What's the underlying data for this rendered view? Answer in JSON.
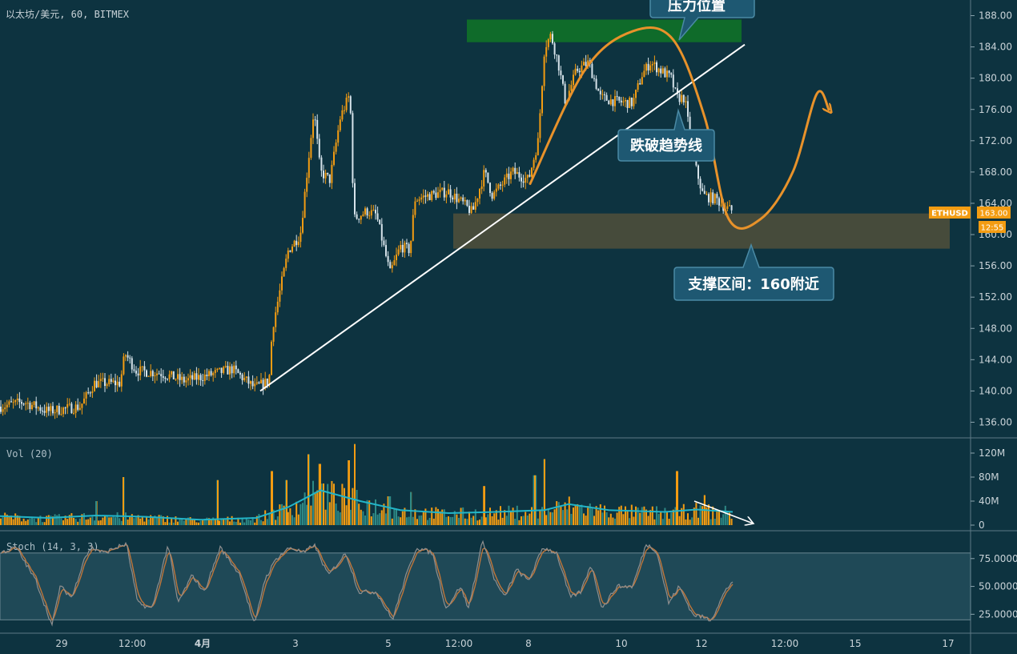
{
  "header": {
    "symbol_title": "以太坊/美元, 60, BITMEX"
  },
  "price_badges": {
    "symbol": "ETHUSD",
    "price": "163.00",
    "countdown": "12:55"
  },
  "colors": {
    "background": "#0d3340",
    "up": "#f39c12",
    "down": "#d6e3ea",
    "ma": "#22b5c8",
    "resistance_zone": "#0f6b2a",
    "support_zone": "#4d4e3b",
    "trend_line": "#ffffff",
    "projection": "#e8922a",
    "callout": "#1e5872"
  },
  "icons": {
    "projection_arrow": "arrow-up-right-icon",
    "volume_arrow": "arrow-down-right-icon"
  },
  "annotations": {
    "resistance": "压力位置",
    "trendline_break": "跌破趋势线",
    "support": "支撑区间：160附近"
  },
  "chart_data": [
    {
      "type": "candlestick",
      "title": "以太坊/美元, 60, BITMEX",
      "symbol": "ETHUSD",
      "last_price": 163.0,
      "ylim": [
        134,
        190
      ],
      "y_ticks": [
        "188.00",
        "184.00",
        "180.00",
        "176.00",
        "172.00",
        "168.00",
        "164.00",
        "160.00",
        "156.00",
        "152.00",
        "148.00",
        "144.00",
        "140.00",
        "136.00"
      ],
      "x_ticks": [
        "29",
        "12:00",
        "4月",
        "3",
        "5",
        "12:00",
        "8",
        "10",
        "12",
        "12:00",
        "15",
        "17"
      ],
      "close_anchors": [
        {
          "x": 0,
          "y": 138.0
        },
        {
          "x": 30,
          "y": 138.6
        },
        {
          "x": 60,
          "y": 137.4
        },
        {
          "x": 100,
          "y": 138.0
        },
        {
          "x": 118,
          "y": 141.0
        },
        {
          "x": 150,
          "y": 141.0
        },
        {
          "x": 156,
          "y": 144.8
        },
        {
          "x": 170,
          "y": 142.6
        },
        {
          "x": 200,
          "y": 142.3
        },
        {
          "x": 230,
          "y": 141.3
        },
        {
          "x": 260,
          "y": 142.0
        },
        {
          "x": 290,
          "y": 142.8
        },
        {
          "x": 318,
          "y": 140.4
        },
        {
          "x": 336,
          "y": 141.3
        },
        {
          "x": 340,
          "y": 148.0
        },
        {
          "x": 360,
          "y": 158.0
        },
        {
          "x": 375,
          "y": 160.0
        },
        {
          "x": 392,
          "y": 176.0
        },
        {
          "x": 400,
          "y": 168.0
        },
        {
          "x": 412,
          "y": 167.0
        },
        {
          "x": 425,
          "y": 175.0
        },
        {
          "x": 437,
          "y": 178.0
        },
        {
          "x": 442,
          "y": 162.0
        },
        {
          "x": 458,
          "y": 163.0
        },
        {
          "x": 470,
          "y": 162.5
        },
        {
          "x": 487,
          "y": 155.0
        },
        {
          "x": 500,
          "y": 158.5
        },
        {
          "x": 512,
          "y": 158.0
        },
        {
          "x": 518,
          "y": 164.5
        },
        {
          "x": 535,
          "y": 165.0
        },
        {
          "x": 560,
          "y": 165.5
        },
        {
          "x": 578,
          "y": 164.0
        },
        {
          "x": 590,
          "y": 162.8
        },
        {
          "x": 605,
          "y": 168.0
        },
        {
          "x": 615,
          "y": 165.0
        },
        {
          "x": 640,
          "y": 168.0
        },
        {
          "x": 660,
          "y": 167.0
        },
        {
          "x": 672,
          "y": 172.0
        },
        {
          "x": 680,
          "y": 184.0
        },
        {
          "x": 688,
          "y": 185.5
        },
        {
          "x": 697,
          "y": 182.0
        },
        {
          "x": 706,
          "y": 177.0
        },
        {
          "x": 720,
          "y": 181.0
        },
        {
          "x": 735,
          "y": 182.0
        },
        {
          "x": 750,
          "y": 177.5
        },
        {
          "x": 770,
          "y": 177.0
        },
        {
          "x": 790,
          "y": 176.8
        },
        {
          "x": 802,
          "y": 180.5
        },
        {
          "x": 812,
          "y": 182.0
        },
        {
          "x": 825,
          "y": 181.0
        },
        {
          "x": 838,
          "y": 180.0
        },
        {
          "x": 845,
          "y": 177.5
        },
        {
          "x": 855,
          "y": 177.5
        },
        {
          "x": 865,
          "y": 170.0
        },
        {
          "x": 878,
          "y": 165.0
        },
        {
          "x": 895,
          "y": 164.5
        },
        {
          "x": 905,
          "y": 163.5
        },
        {
          "x": 915,
          "y": 163.0
        }
      ],
      "zones": [
        {
          "name": "resistance",
          "from": 184.6,
          "to": 187.5
        },
        {
          "name": "support",
          "from": 158.2,
          "to": 162.7
        }
      ],
      "trend_line": {
        "from": {
          "x": 325,
          "y": 140.0
        },
        "to": {
          "x": 930,
          "y": 184.3
        }
      },
      "projection_path": [
        [
          662,
          166.5
        ],
        [
          730,
          181
        ],
        [
          790,
          186
        ],
        [
          840,
          185
        ],
        [
          880,
          175
        ],
        [
          910,
          162
        ],
        [
          950,
          162
        ],
        [
          990,
          168
        ],
        [
          1020,
          178
        ],
        [
          1035,
          176
        ]
      ]
    },
    {
      "type": "bar",
      "title": "Vol (20)",
      "y_ticks": [
        "120M",
        "80M",
        "40M",
        "0"
      ],
      "ylim": [
        0,
        135
      ],
      "moving_average_anchors": [
        {
          "x": 0,
          "y": 15
        },
        {
          "x": 60,
          "y": 12
        },
        {
          "x": 120,
          "y": 16
        },
        {
          "x": 180,
          "y": 14
        },
        {
          "x": 250,
          "y": 9
        },
        {
          "x": 320,
          "y": 12
        },
        {
          "x": 360,
          "y": 30
        },
        {
          "x": 400,
          "y": 58
        },
        {
          "x": 450,
          "y": 40
        },
        {
          "x": 500,
          "y": 25
        },
        {
          "x": 560,
          "y": 20
        },
        {
          "x": 620,
          "y": 22
        },
        {
          "x": 680,
          "y": 25
        },
        {
          "x": 710,
          "y": 35
        },
        {
          "x": 760,
          "y": 25
        },
        {
          "x": 830,
          "y": 22
        },
        {
          "x": 870,
          "y": 26
        },
        {
          "x": 915,
          "y": 22
        }
      ],
      "spikes": [
        {
          "x": 120,
          "y": 40
        },
        {
          "x": 154,
          "y": 80
        },
        {
          "x": 272,
          "y": 75
        },
        {
          "x": 340,
          "y": 90
        },
        {
          "x": 358,
          "y": 75
        },
        {
          "x": 385,
          "y": 118
        },
        {
          "x": 400,
          "y": 102
        },
        {
          "x": 436,
          "y": 108
        },
        {
          "x": 443,
          "y": 135
        },
        {
          "x": 486,
          "y": 48
        },
        {
          "x": 513,
          "y": 55
        },
        {
          "x": 605,
          "y": 65
        },
        {
          "x": 668,
          "y": 83
        },
        {
          "x": 680,
          "y": 110
        },
        {
          "x": 845,
          "y": 90
        },
        {
          "x": 880,
          "y": 50
        }
      ],
      "trend_arrow": {
        "from": {
          "x": 867,
          "y": 40
        },
        "to": {
          "x": 940,
          "y": 3
        }
      }
    },
    {
      "type": "line",
      "title": "Stoch (14, 3, 3)",
      "y_ticks": [
        "75.0000",
        "50.0000",
        "25.0000"
      ],
      "ylim": [
        8,
        100
      ],
      "band": [
        20,
        80
      ],
      "k_anchors": [
        {
          "x": 0,
          "y": 80
        },
        {
          "x": 20,
          "y": 85
        },
        {
          "x": 45,
          "y": 55
        },
        {
          "x": 65,
          "y": 15
        },
        {
          "x": 75,
          "y": 50
        },
        {
          "x": 90,
          "y": 40
        },
        {
          "x": 105,
          "y": 75
        },
        {
          "x": 115,
          "y": 85
        },
        {
          "x": 130,
          "y": 80
        },
        {
          "x": 145,
          "y": 85
        },
        {
          "x": 158,
          "y": 88
        },
        {
          "x": 172,
          "y": 35
        },
        {
          "x": 190,
          "y": 30
        },
        {
          "x": 210,
          "y": 88
        },
        {
          "x": 222,
          "y": 35
        },
        {
          "x": 240,
          "y": 60
        },
        {
          "x": 255,
          "y": 45
        },
        {
          "x": 275,
          "y": 85
        },
        {
          "x": 300,
          "y": 60
        },
        {
          "x": 318,
          "y": 15
        },
        {
          "x": 330,
          "y": 55
        },
        {
          "x": 345,
          "y": 75
        },
        {
          "x": 362,
          "y": 85
        },
        {
          "x": 380,
          "y": 80
        },
        {
          "x": 392,
          "y": 88
        },
        {
          "x": 410,
          "y": 60
        },
        {
          "x": 432,
          "y": 80
        },
        {
          "x": 448,
          "y": 45
        },
        {
          "x": 470,
          "y": 45
        },
        {
          "x": 490,
          "y": 20
        },
        {
          "x": 505,
          "y": 55
        },
        {
          "x": 520,
          "y": 85
        },
        {
          "x": 540,
          "y": 80
        },
        {
          "x": 557,
          "y": 30
        },
        {
          "x": 575,
          "y": 50
        },
        {
          "x": 585,
          "y": 30
        },
        {
          "x": 603,
          "y": 92
        },
        {
          "x": 618,
          "y": 55
        },
        {
          "x": 630,
          "y": 40
        },
        {
          "x": 645,
          "y": 65
        },
        {
          "x": 660,
          "y": 55
        },
        {
          "x": 678,
          "y": 85
        },
        {
          "x": 695,
          "y": 80
        },
        {
          "x": 712,
          "y": 40
        },
        {
          "x": 725,
          "y": 45
        },
        {
          "x": 738,
          "y": 70
        },
        {
          "x": 752,
          "y": 30
        },
        {
          "x": 770,
          "y": 50
        },
        {
          "x": 790,
          "y": 50
        },
        {
          "x": 807,
          "y": 88
        },
        {
          "x": 820,
          "y": 82
        },
        {
          "x": 835,
          "y": 35
        },
        {
          "x": 848,
          "y": 50
        },
        {
          "x": 865,
          "y": 25
        },
        {
          "x": 888,
          "y": 20
        },
        {
          "x": 905,
          "y": 45
        },
        {
          "x": 915,
          "y": 55
        }
      ]
    }
  ]
}
